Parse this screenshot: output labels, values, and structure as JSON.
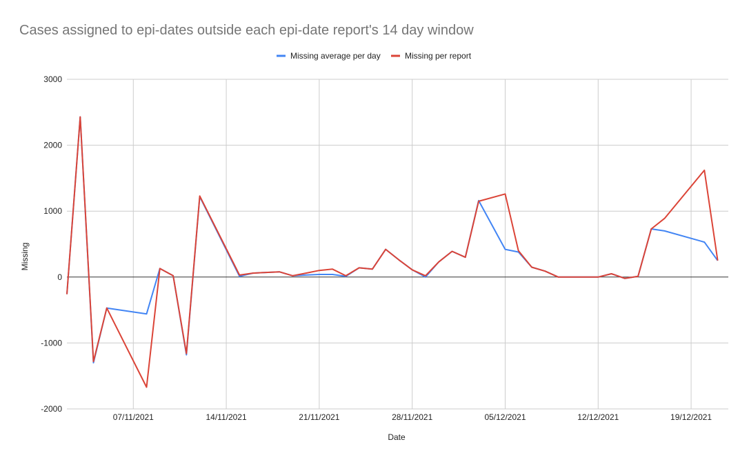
{
  "chart_data": {
    "type": "line",
    "title": "Cases assigned to epi-dates outside each epi-date report's 14 day window",
    "xlabel": "Date",
    "ylabel": "Missing",
    "ylim": [
      -2000,
      3000
    ],
    "y_ticks": [
      3000,
      2000,
      1000,
      0,
      -1000,
      -2000
    ],
    "y_tick_labels": [
      "3000",
      "2000",
      "1000",
      "0",
      "-1000",
      "-2000"
    ],
    "x_range": [
      0,
      49.8
    ],
    "x_ticks": [
      5,
      12,
      19,
      26,
      33,
      40,
      47
    ],
    "x_tick_labels": [
      "07/11/2021",
      "14/11/2021",
      "21/11/2021",
      "28/11/2021",
      "05/12/2021",
      "12/12/2021",
      "19/12/2021"
    ],
    "x_units": "days since 02/11/2021",
    "legend_position": "top",
    "grid": true,
    "series": [
      {
        "name": "Missing average per day",
        "color": "#4285f4",
        "x": [
          0,
          1,
          2,
          3,
          6,
          7,
          8,
          9,
          10,
          13,
          14,
          15,
          16,
          17,
          18,
          19,
          20,
          21,
          22,
          23,
          24,
          25,
          26,
          27,
          28,
          29,
          30,
          31,
          33,
          34,
          35,
          36,
          37,
          38,
          39,
          40,
          41,
          42,
          43,
          44,
          45,
          48,
          49
        ],
        "values": [
          -260,
          2430,
          -1300,
          -470,
          -560,
          130,
          20,
          -1180,
          1220,
          10,
          60,
          70,
          80,
          20,
          30,
          40,
          40,
          10,
          140,
          120,
          420,
          260,
          110,
          0,
          230,
          390,
          300,
          1160,
          420,
          380,
          150,
          90,
          0,
          0,
          0,
          0,
          50,
          -20,
          10,
          730,
          700,
          530,
          250
        ]
      },
      {
        "name": "Missing per report",
        "color": "#db4437",
        "x": [
          0,
          1,
          2,
          3,
          6,
          7,
          8,
          9,
          10,
          13,
          14,
          15,
          16,
          17,
          18,
          19,
          20,
          21,
          22,
          23,
          24,
          25,
          26,
          27,
          28,
          29,
          30,
          31,
          33,
          34,
          35,
          36,
          37,
          38,
          39,
          40,
          41,
          42,
          43,
          44,
          45,
          48,
          49
        ],
        "values": [
          -260,
          2430,
          -1280,
          -470,
          -1670,
          130,
          20,
          -1160,
          1230,
          30,
          60,
          70,
          80,
          20,
          60,
          100,
          120,
          20,
          140,
          120,
          420,
          260,
          110,
          20,
          230,
          390,
          300,
          1150,
          1260,
          400,
          150,
          90,
          0,
          0,
          0,
          0,
          50,
          -20,
          10,
          730,
          890,
          1620,
          250
        ]
      }
    ]
  }
}
